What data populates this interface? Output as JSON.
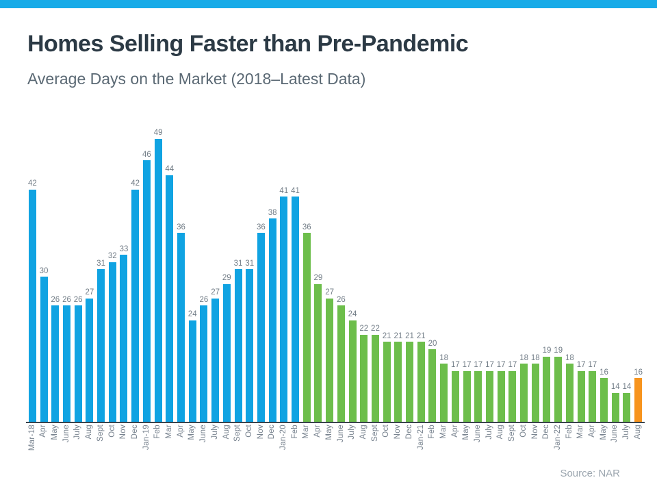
{
  "header": {
    "title": "Homes Selling Faster than Pre-Pandemic",
    "subtitle": "Average Days on the Market (2018–Latest Data)"
  },
  "footer": {
    "source": "Source: NAR"
  },
  "colors": {
    "banner": "#18ABE8",
    "blue_bar": "#10A3E2",
    "green_bar": "#6DBE4B",
    "orange_bar": "#F7941D",
    "title_text": "#2C3A45",
    "subtitle_text": "#5B6974",
    "value_label": "#727D87",
    "month_label": "#77828E",
    "axis_line": "#3A444D",
    "source_text": "#9CA6AF"
  },
  "chart_data": {
    "type": "bar",
    "title": "Homes Selling Faster than Pre-Pandemic",
    "subtitle": "Average Days on the Market (2018–Latest Data)",
    "xlabel": "",
    "ylabel": "",
    "ylim": [
      10,
      52
    ],
    "grid": false,
    "legend": "none",
    "value_labels_shown": true,
    "x_labels_rotated_90": true,
    "categories": [
      "Mar-18",
      "Apr",
      "May",
      "June",
      "July",
      "Aug",
      "Sept",
      "Oct",
      "Nov",
      "Dec",
      "Jan-19",
      "Feb",
      "Mar",
      "Apr",
      "May",
      "June",
      "July",
      "Aug",
      "Sept",
      "Oct",
      "Nov",
      "Dec",
      "Jan-20",
      "Feb",
      "Mar",
      "Apr",
      "May",
      "June",
      "July",
      "Aug",
      "Sept",
      "Oct",
      "Nov",
      "Dec",
      "Jan-21",
      "Feb",
      "Mar",
      "Apr",
      "May",
      "June",
      "July",
      "Aug",
      "Sept",
      "Oct",
      "Nov",
      "Dec",
      "Jan-22",
      "Feb",
      "Mar",
      "Apr",
      "May",
      "June",
      "July",
      "Aug"
    ],
    "values": [
      42,
      30,
      26,
      26,
      26,
      27,
      31,
      32,
      33,
      42,
      46,
      49,
      44,
      36,
      24,
      26,
      27,
      29,
      31,
      31,
      36,
      38,
      41,
      41,
      36,
      29,
      27,
      26,
      24,
      22,
      22,
      21,
      21,
      21,
      21,
      20,
      18,
      17,
      17,
      17,
      17,
      17,
      17,
      18,
      18,
      19,
      19,
      18,
      17,
      17,
      16,
      14,
      14,
      16
    ],
    "segments": [
      {
        "name": "blue",
        "from": 0,
        "to": 23,
        "color": "#10A3E2"
      },
      {
        "name": "green",
        "from": 24,
        "to": 52,
        "color": "#6DBE4B"
      },
      {
        "name": "orange",
        "from": 53,
        "to": 53,
        "color": "#F7941D"
      }
    ]
  }
}
